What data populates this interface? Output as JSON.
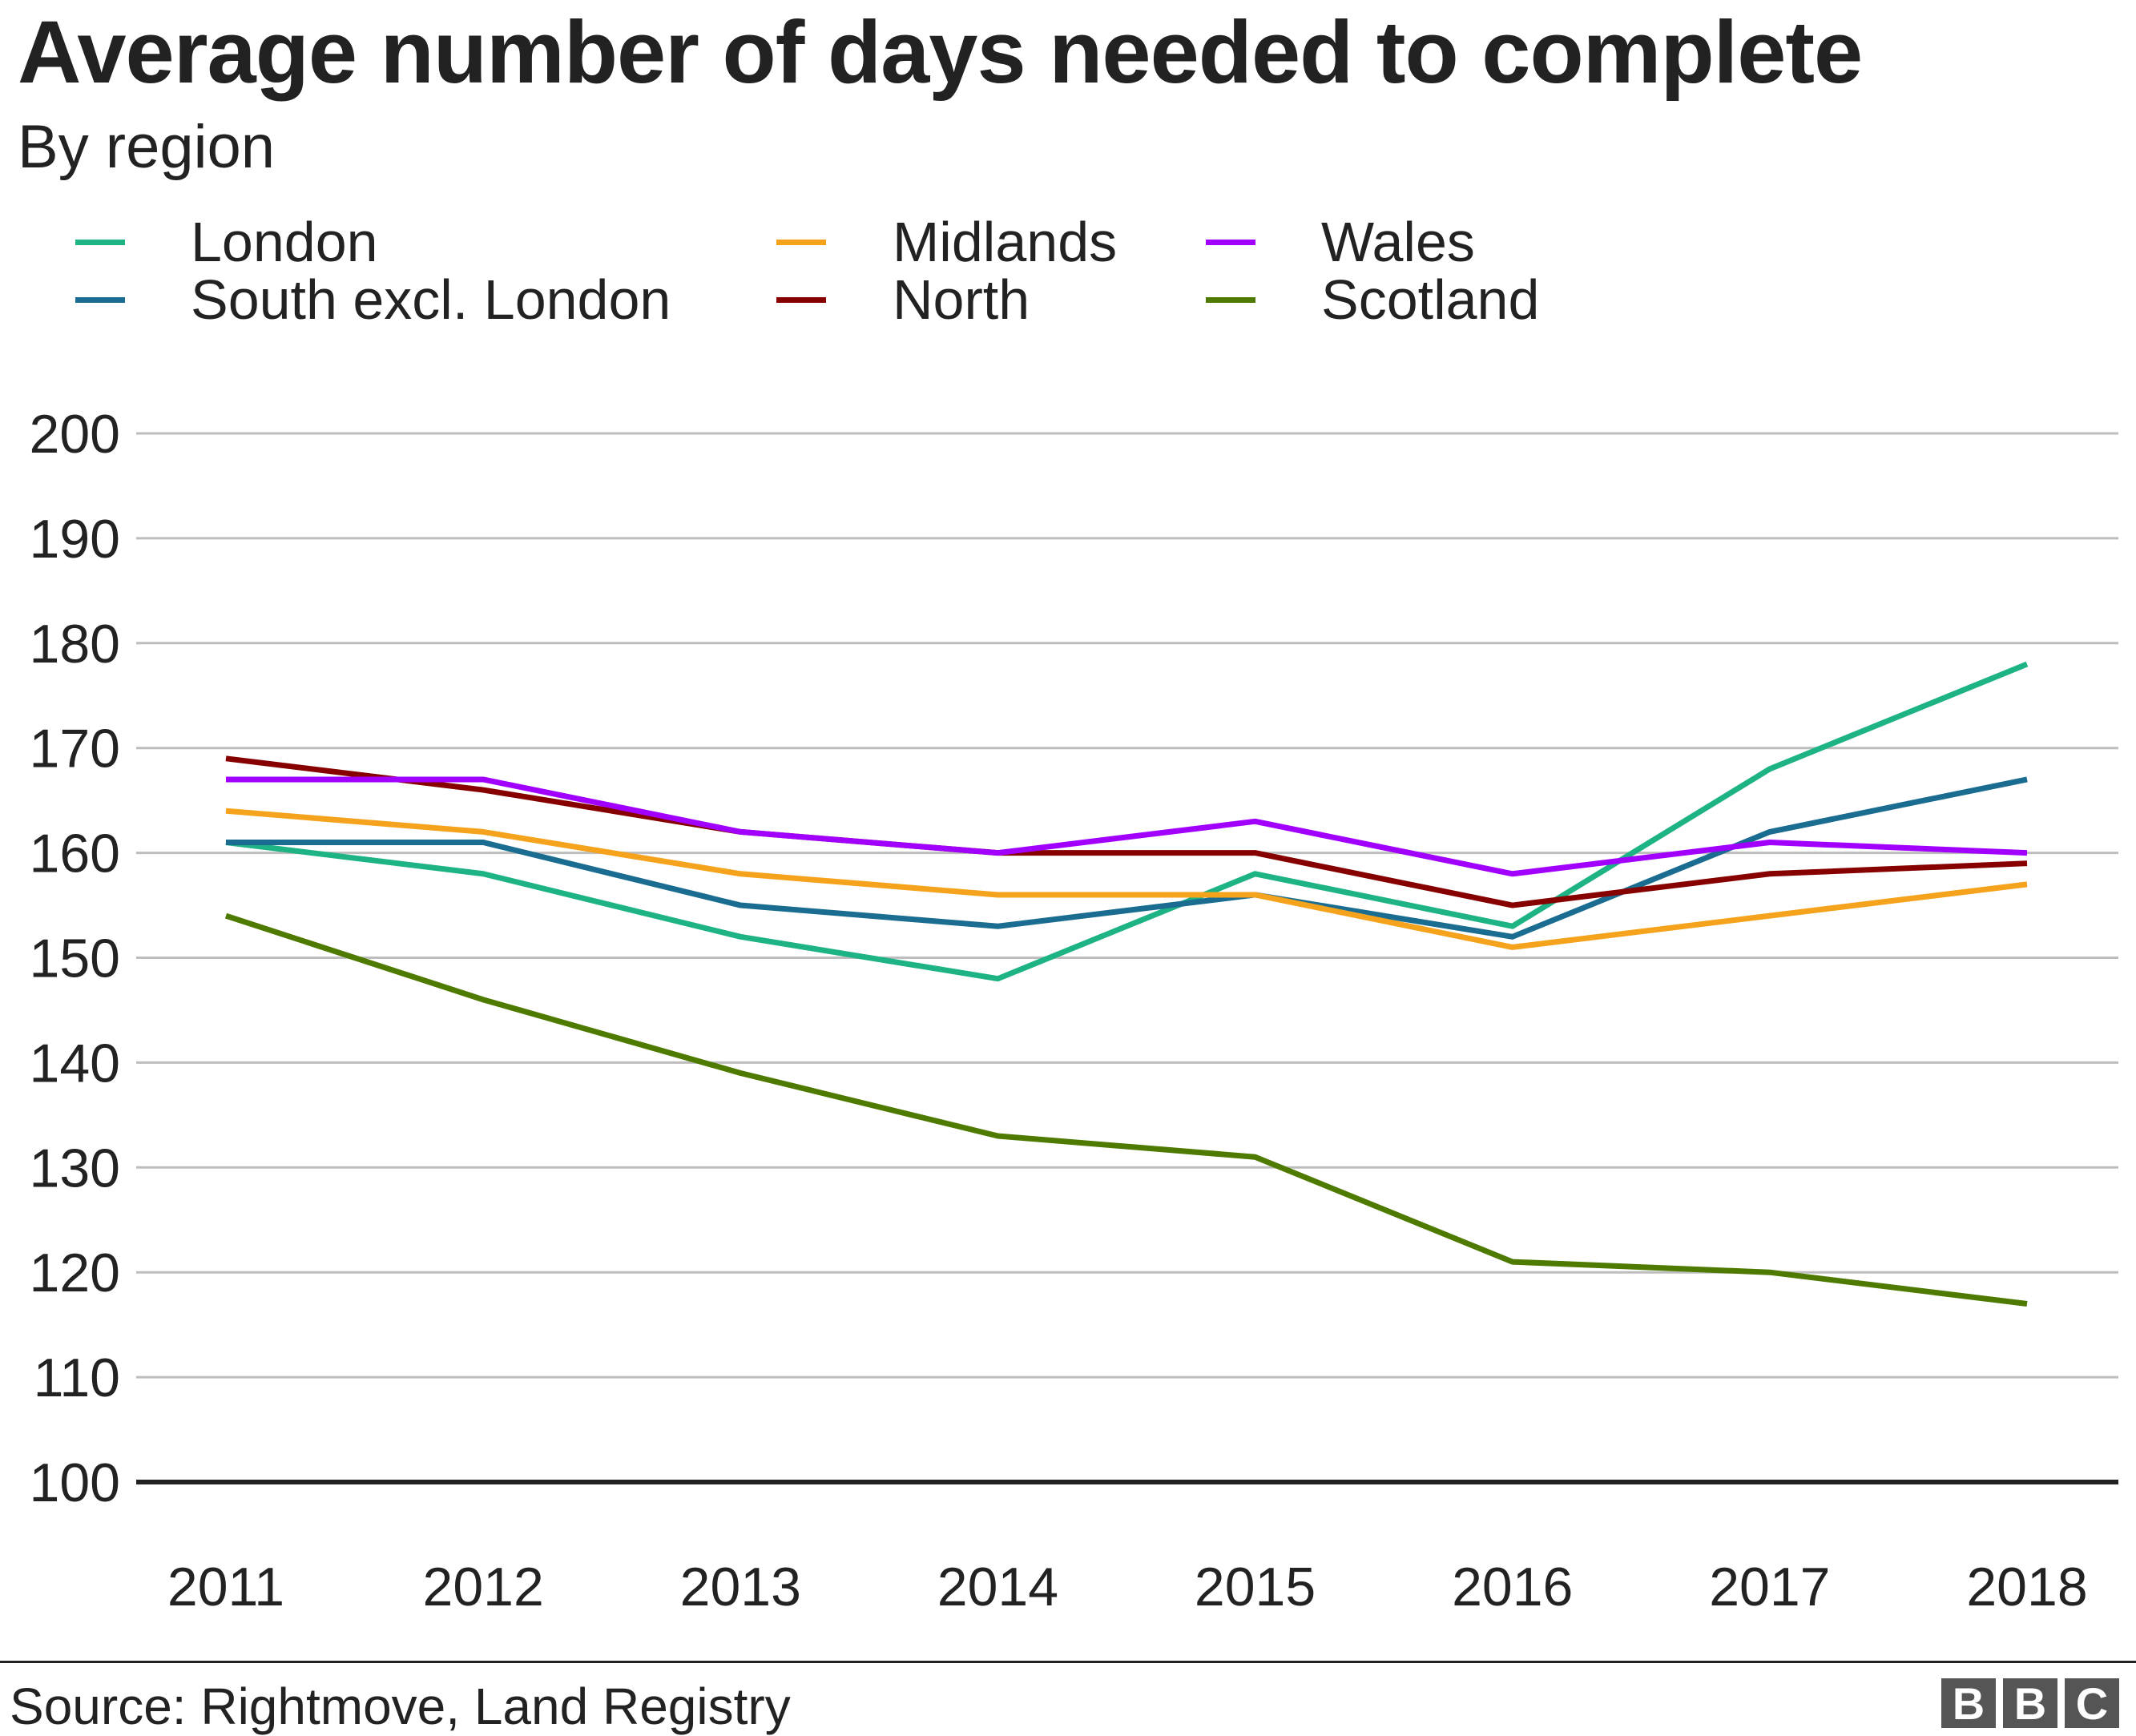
{
  "chart_data": {
    "type": "line",
    "title": "Average number of days needed to complete",
    "subtitle": "By region",
    "x": [
      "2011",
      "2012",
      "2013",
      "2014",
      "2015",
      "2016",
      "2017",
      "2018"
    ],
    "ylim": [
      100,
      200
    ],
    "yticks": [
      "100",
      "110",
      "120",
      "130",
      "140",
      "150",
      "160",
      "170",
      "180",
      "190",
      "200"
    ],
    "grid": true,
    "legend_position": "top",
    "series": [
      {
        "name": "London",
        "color": "#1db385",
        "values": [
          161,
          158,
          152,
          148,
          158,
          153,
          168,
          178
        ]
      },
      {
        "name": "South excl. London",
        "color": "#1a6d90",
        "values": [
          161,
          161,
          155,
          153,
          156,
          152,
          162,
          167
        ]
      },
      {
        "name": "Midlands",
        "color": "#f5a21c",
        "values": [
          164,
          162,
          158,
          156,
          156,
          151,
          154,
          157
        ]
      },
      {
        "name": "North",
        "color": "#860000",
        "values": [
          169,
          166,
          162,
          160,
          160,
          155,
          158,
          159
        ]
      },
      {
        "name": "Wales",
        "color": "#a100ff",
        "values": [
          167,
          167,
          162,
          160,
          163,
          158,
          161,
          160
        ]
      },
      {
        "name": "Scotland",
        "color": "#4e7a00",
        "values": [
          154,
          146,
          139,
          133,
          131,
          121,
          120,
          117
        ]
      }
    ]
  },
  "footer": {
    "source": "Source: Rightmove, Land Registry",
    "logo": [
      "B",
      "B",
      "C"
    ]
  }
}
